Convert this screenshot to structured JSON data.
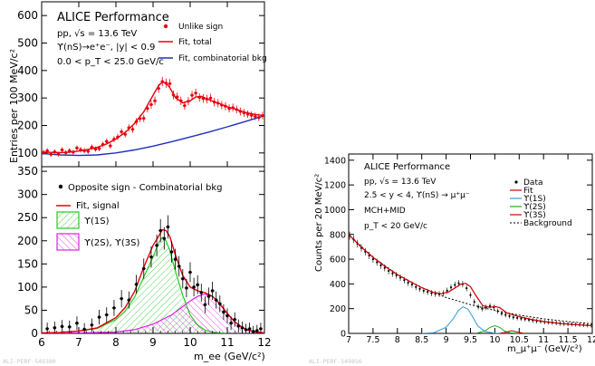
{
  "figure": {
    "left_watermark": "ALI-PERF-549380",
    "right_watermark": "ALI-PERF-549856"
  },
  "chart_data": [
    {
      "type": "scatter",
      "panel": "left-top",
      "title": "ALICE Performance",
      "info_lines": [
        "pp, √s = 13.6 TeV",
        "ϒ(nS)→e⁺e⁻, |y| < 0.9",
        "0.0 < p_T < 25.0 GeV/c"
      ],
      "ylabel": "Entries per 100 MeV/c²",
      "xlim": [
        6,
        12
      ],
      "ylim": [
        50,
        650
      ],
      "yticks": [
        "100",
        "200",
        "300",
        "400",
        "500",
        "600"
      ],
      "legend": [
        "Unlike sign",
        "Fit, total",
        "Fit, combinatorial bkg"
      ],
      "colors": {
        "data": "#e8000b",
        "total": "#e8000b",
        "bkg": "#1f2fbf"
      },
      "series": [
        {
          "name": "Unlike sign",
          "x": [
            6.05,
            6.15,
            6.25,
            6.35,
            6.45,
            6.55,
            6.65,
            6.75,
            6.85,
            6.95,
            7.05,
            7.15,
            7.25,
            7.35,
            7.45,
            7.55,
            7.65,
            7.75,
            7.85,
            7.95,
            8.05,
            8.15,
            8.25,
            8.35,
            8.45,
            8.55,
            8.65,
            8.75,
            8.85,
            8.95,
            9.05,
            9.15,
            9.25,
            9.35,
            9.45,
            9.55,
            9.65,
            9.75,
            9.85,
            9.95,
            10.05,
            10.15,
            10.25,
            10.35,
            10.45,
            10.55,
            10.65,
            10.75,
            10.85,
            10.95,
            11.05,
            11.15,
            11.25,
            11.35,
            11.45,
            11.55,
            11.65,
            11.75,
            11.85,
            11.95
          ],
          "values": [
            102,
            108,
            95,
            104,
            96,
            111,
            101,
            108,
            103,
            118,
            112,
            108,
            106,
            121,
            114,
            116,
            131,
            142,
            126,
            150,
            158,
            177,
            168,
            192,
            186,
            214,
            225,
            226,
            262,
            276,
            290,
            335,
            360,
            354,
            352,
            311,
            304,
            290,
            272,
            288,
            310,
            318,
            302,
            298,
            296,
            300,
            285,
            281,
            274,
            270,
            262,
            265,
            258,
            251,
            246,
            241,
            237,
            233,
            229,
            236
          ]
        },
        {
          "name": "Fit, total",
          "x": [
            6.0,
            6.25,
            6.5,
            6.75,
            7.0,
            7.25,
            7.5,
            7.75,
            8.0,
            8.25,
            8.5,
            8.75,
            9.0,
            9.15,
            9.25,
            9.35,
            9.45,
            9.6,
            9.8,
            10.0,
            10.15,
            10.3,
            10.5,
            10.75,
            11.0,
            11.25,
            11.5,
            11.75,
            12.0
          ],
          "values": [
            103,
            102,
            101,
            103,
            107,
            113,
            121,
            133,
            151,
            175,
            207,
            250,
            310,
            345,
            358,
            354,
            338,
            302,
            282,
            290,
            304,
            306,
            294,
            282,
            268,
            258,
            247,
            240,
            236
          ]
        },
        {
          "name": "Fit, combinatorial bkg",
          "x": [
            6.0,
            6.5,
            7.0,
            7.5,
            8.0,
            8.5,
            9.0,
            9.5,
            10.0,
            10.5,
            11.0,
            11.5,
            12.0
          ],
          "values": [
            98,
            93,
            91,
            93,
            100,
            111,
            125,
            141,
            158,
            176,
            195,
            215,
            236
          ]
        }
      ]
    },
    {
      "type": "scatter",
      "panel": "left-bottom",
      "xlabel": "m_ee (GeV/c²)",
      "xlim": [
        6,
        12
      ],
      "ylim": [
        0,
        360
      ],
      "xticks": [
        "6",
        "7",
        "8",
        "9",
        "10",
        "11",
        "12"
      ],
      "yticks": [
        "0",
        "50",
        "100",
        "150",
        "200",
        "250",
        "300",
        "350"
      ],
      "legend": [
        "Opposite sign - Combinatorial bkg",
        "Fit, signal",
        "ϒ(1S)",
        "ϒ(2S), ϒ(3S)"
      ],
      "colors": {
        "data": "#000000",
        "signal": "#e8000b",
        "ups1s": "#22cc22",
        "ups23s": "#e020e0"
      },
      "series": [
        {
          "name": "Opposite sign - Combinatorial bkg",
          "x": [
            6.15,
            6.35,
            6.55,
            6.75,
            6.95,
            7.15,
            7.35,
            7.55,
            7.75,
            7.95,
            8.15,
            8.35,
            8.55,
            8.75,
            8.95,
            9.1,
            9.2,
            9.3,
            9.4,
            9.5,
            9.6,
            9.7,
            9.8,
            9.9,
            10.0,
            10.1,
            10.2,
            10.3,
            10.4,
            10.5,
            10.6,
            10.7,
            10.8,
            10.9,
            11.0,
            11.1,
            11.2,
            11.3,
            11.4,
            11.5,
            11.6,
            11.7,
            11.8,
            11.9
          ],
          "values": [
            10,
            12,
            15,
            14,
            22,
            9,
            18,
            35,
            40,
            55,
            75,
            72,
            106,
            140,
            165,
            190,
            222,
            205,
            230,
            176,
            160,
            145,
            118,
            98,
            132,
            100,
            105,
            88,
            62,
            80,
            92,
            72,
            64,
            46,
            38,
            22,
            30,
            16,
            12,
            8,
            10,
            4,
            6,
            10
          ]
        },
        {
          "name": "Fit, signal",
          "x": [
            6.0,
            6.5,
            7.0,
            7.5,
            8.0,
            8.25,
            8.5,
            8.75,
            9.0,
            9.15,
            9.25,
            9.35,
            9.45,
            9.6,
            9.8,
            10.0,
            10.2,
            10.4,
            10.6,
            10.8,
            11.0,
            11.2,
            11.4,
            11.6,
            11.8,
            12.0
          ],
          "values": [
            1,
            2,
            5,
            12,
            34,
            56,
            90,
            143,
            190,
            210,
            224,
            222,
            210,
            170,
            125,
            100,
            92,
            88,
            80,
            64,
            43,
            25,
            13,
            6,
            3,
            1
          ]
        },
        {
          "name": "ϒ(1S)",
          "x": [
            6.0,
            6.5,
            7.0,
            7.5,
            8.0,
            8.25,
            8.5,
            8.75,
            9.0,
            9.15,
            9.25,
            9.35,
            9.45,
            9.6,
            9.8,
            10.0,
            10.2,
            10.4,
            10.6,
            10.8,
            11.0
          ],
          "values": [
            1,
            2,
            5,
            11,
            30,
            48,
            78,
            122,
            165,
            196,
            207,
            200,
            180,
            135,
            82,
            40,
            18,
            7,
            3,
            1,
            0
          ]
        },
        {
          "name": "ϒ(2S), ϒ(3S)",
          "x": [
            6.0,
            7.0,
            8.0,
            8.5,
            9.0,
            9.5,
            9.8,
            10.0,
            10.2,
            10.4,
            10.6,
            10.8,
            11.0,
            11.2,
            11.4,
            11.6,
            11.8,
            12.0
          ],
          "values": [
            0,
            1,
            3,
            8,
            20,
            40,
            58,
            70,
            80,
            85,
            80,
            63,
            43,
            25,
            13,
            6,
            3,
            1
          ]
        }
      ]
    },
    {
      "type": "scatter",
      "panel": "right",
      "title": "ALICE Performance",
      "info_lines": [
        "pp, √s = 13.6 TeV",
        "2.5 < y < 4, ϒ(nS) → μ⁺μ⁻",
        "MCH+MID",
        "p_T < 20 GeV/c"
      ],
      "ylabel": "Counts per 20 MeV/c²",
      "xlabel": "m_μ⁺μ⁻ (GeV/c²)",
      "xlim": [
        7,
        12
      ],
      "ylim": [
        0,
        1450
      ],
      "xticks": [
        "7",
        "7.5",
        "8",
        "8.5",
        "9",
        "9.5",
        "10",
        "10.5",
        "11",
        "11.5",
        "12"
      ],
      "yticks": [
        "0",
        "200",
        "400",
        "600",
        "800",
        "1000",
        "1200",
        "1400"
      ],
      "legend": [
        "Data",
        "Fit",
        "ϒ(1S)",
        "ϒ(2S)",
        "ϒ(3S)",
        "Background"
      ],
      "colors": {
        "data": "#000000",
        "fit": "#cc0000",
        "ups1s": "#3399dd",
        "ups2s": "#22aa22",
        "ups3s": "#cc0000",
        "bkg": "#000000"
      },
      "series": [
        {
          "name": "Data",
          "x": [
            7.02,
            7.1,
            7.18,
            7.26,
            7.34,
            7.42,
            7.5,
            7.58,
            7.66,
            7.74,
            7.82,
            7.9,
            7.98,
            8.06,
            8.14,
            8.22,
            8.3,
            8.38,
            8.46,
            8.54,
            8.62,
            8.7,
            8.78,
            8.86,
            8.94,
            9.02,
            9.1,
            9.18,
            9.26,
            9.34,
            9.42,
            9.5,
            9.58,
            9.66,
            9.74,
            9.82,
            9.9,
            9.98,
            10.06,
            10.14,
            10.22,
            10.3,
            10.38,
            10.46,
            10.54,
            10.62,
            10.7,
            10.78,
            10.86,
            10.94,
            11.02,
            11.1,
            11.18,
            11.26,
            11.34,
            11.42,
            11.5,
            11.58,
            11.66,
            11.74,
            11.82,
            11.9,
            11.98
          ],
          "values": [
            790,
            760,
            725,
            690,
            660,
            630,
            600,
            575,
            550,
            530,
            505,
            485,
            470,
            450,
            430,
            410,
            395,
            375,
            360,
            345,
            335,
            325,
            320,
            318,
            325,
            345,
            372,
            392,
            405,
            398,
            365,
            310,
            255,
            215,
            200,
            210,
            222,
            210,
            180,
            160,
            150,
            140,
            130,
            125,
            120,
            115,
            110,
            105,
            100,
            97,
            92,
            90,
            87,
            84,
            80,
            78,
            76,
            74,
            72,
            70,
            68,
            66,
            64
          ]
        },
        {
          "name": "Fit",
          "x": [
            7.0,
            7.25,
            7.5,
            7.75,
            8.0,
            8.25,
            8.5,
            8.75,
            8.9,
            9.05,
            9.2,
            9.3,
            9.4,
            9.5,
            9.6,
            9.75,
            9.9,
            10.0,
            10.1,
            10.25,
            10.5,
            10.75,
            11.0,
            11.25,
            11.5,
            11.75,
            12.0
          ],
          "values": [
            800,
            700,
            615,
            540,
            475,
            420,
            370,
            330,
            320,
            335,
            372,
            398,
            405,
            378,
            312,
            225,
            210,
            218,
            208,
            165,
            135,
            113,
            96,
            84,
            75,
            68,
            62
          ]
        },
        {
          "name": "ϒ(1S)",
          "x": [
            8.5,
            8.75,
            9.0,
            9.15,
            9.25,
            9.35,
            9.45,
            9.55,
            9.65,
            9.8,
            10.0,
            10.2
          ],
          "values": [
            0,
            6,
            50,
            120,
            185,
            215,
            195,
            130,
            60,
            15,
            2,
            0
          ]
        },
        {
          "name": "ϒ(2S)",
          "x": [
            9.6,
            9.8,
            9.9,
            10.0,
            10.1,
            10.2,
            10.3,
            10.5
          ],
          "values": [
            0,
            20,
            48,
            62,
            48,
            20,
            5,
            0
          ]
        },
        {
          "name": "ϒ(3S)",
          "x": [
            10.1,
            10.25,
            10.35,
            10.45,
            10.6
          ],
          "values": [
            0,
            12,
            22,
            12,
            0
          ]
        },
        {
          "name": "Background",
          "x": [
            7.0,
            7.5,
            8.0,
            8.5,
            9.0,
            9.5,
            10.0,
            10.5,
            11.0,
            11.5,
            12.0
          ],
          "values": [
            800,
            615,
            475,
            370,
            290,
            232,
            185,
            148,
            118,
            95,
            78
          ]
        }
      ]
    }
  ]
}
